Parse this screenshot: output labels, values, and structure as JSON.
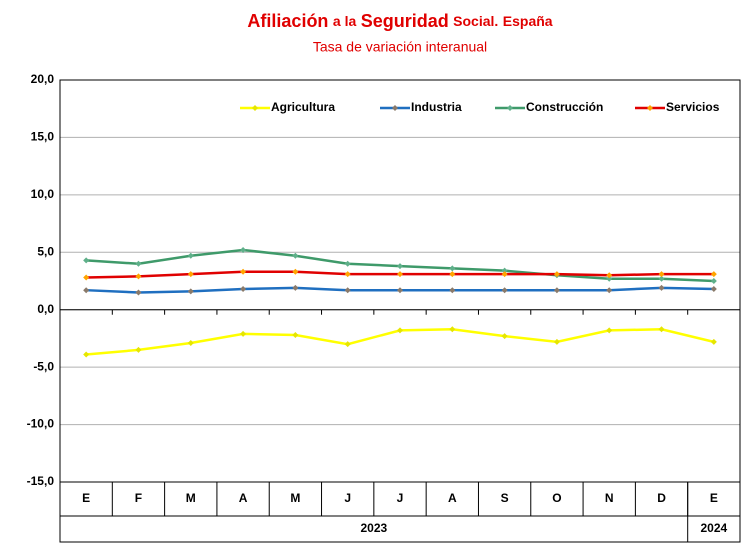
{
  "chart_data": {
    "type": "line",
    "title": [
      "Afiliación",
      "a la",
      "Seguridad",
      "Social.",
      "España"
    ],
    "subtitle": "Tasa de variación interanual",
    "categories": [
      "E",
      "F",
      "M",
      "A",
      "M",
      "J",
      "J",
      "A",
      "S",
      "O",
      "N",
      "D",
      "E"
    ],
    "category_years": [
      "2023",
      "2023",
      "2023",
      "2023",
      "2023",
      "2023",
      "2023",
      "2023",
      "2023",
      "2023",
      "2023",
      "2023",
      "2024"
    ],
    "series": [
      {
        "name": "Agricultura",
        "color": "#ffff00",
        "marker_color": "#e6e600",
        "values": [
          -3.9,
          -3.5,
          -2.9,
          -2.1,
          -2.2,
          -3.0,
          -1.8,
          -1.7,
          -2.3,
          -2.8,
          -1.8,
          -1.7,
          -2.8
        ]
      },
      {
        "name": "Industria",
        "color": "#1f6fc0",
        "marker_color": "#8a7a6a",
        "values": [
          1.7,
          1.5,
          1.6,
          1.8,
          1.9,
          1.7,
          1.7,
          1.7,
          1.7,
          1.7,
          1.7,
          1.9,
          1.8
        ]
      },
      {
        "name": "Construcción",
        "color": "#3f9a6a",
        "marker_color": "#5fb08a",
        "values": [
          4.3,
          4.0,
          4.7,
          5.2,
          4.7,
          4.0,
          3.8,
          3.6,
          3.4,
          3.0,
          2.7,
          2.7,
          2.5
        ]
      },
      {
        "name": "Servicios",
        "color": "#e00000",
        "marker_color": "#ffa500",
        "values": [
          2.8,
          2.9,
          3.1,
          3.3,
          3.3,
          3.1,
          3.1,
          3.1,
          3.1,
          3.1,
          3.0,
          3.1,
          3.1
        ]
      }
    ],
    "ylim": [
      -15,
      20
    ],
    "yticks": [
      {
        "value": -15,
        "label": "-15,0"
      },
      {
        "value": -10,
        "label": "-10,0"
      },
      {
        "value": -5,
        "label": "-5,0"
      },
      {
        "value": 0,
        "label": "0,0"
      },
      {
        "value": 5,
        "label": "5,0"
      },
      {
        "value": 10,
        "label": "10,0"
      },
      {
        "value": 15,
        "label": "15,0"
      },
      {
        "value": 20,
        "label": "20,0"
      }
    ],
    "grid": true,
    "legend": "top-right",
    "title_color": "#e00000"
  }
}
